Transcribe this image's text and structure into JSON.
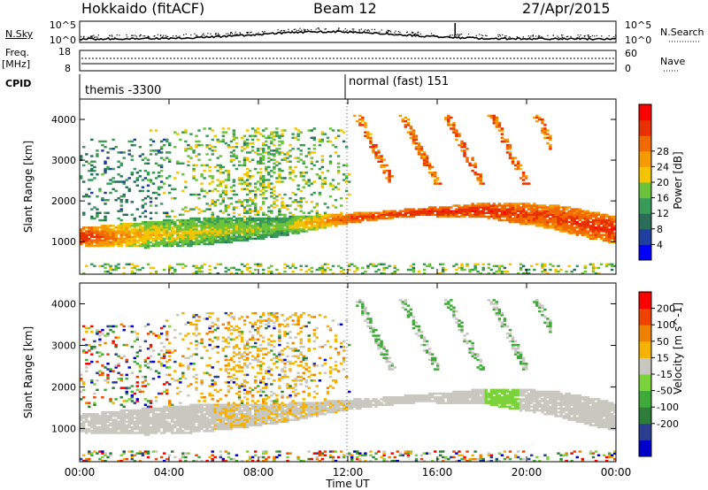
{
  "header": {
    "station": "Hokkaido (fitACF)",
    "beam": "Beam 12",
    "date": "27/Apr/2015"
  },
  "side_labels": {
    "nsky": "N.Sky",
    "freq": "Freq.",
    "freq_unit": "[MHz]",
    "cpid": "CPID",
    "nsearch": "N.Search",
    "nave": "Nave",
    "nsky_ticks": [
      "10^5",
      "10^0"
    ],
    "freq_ticks": [
      "18",
      "8"
    ],
    "nsearch_ticks": [
      "10^5",
      "10^0"
    ],
    "nave_ticks": [
      "60",
      "0"
    ]
  },
  "cpid_labels": [
    "themis -3300",
    "normal (fast) 151"
  ],
  "colors": {
    "power_scale": [
      "#0000ff",
      "#1f3fa0",
      "#2a6e5a",
      "#3a9a58",
      "#6cc23a",
      "#f5c400",
      "#f59a00",
      "#f06a00",
      "#e83000",
      "#ff0000"
    ],
    "velocity_scale": [
      "#0000cc",
      "#2a3d8f",
      "#2e7d3a",
      "#3faa3a",
      "#7bd23a",
      "#c8c8c0",
      "#f5b300",
      "#f08000",
      "#ee4400",
      "#ff0000"
    ]
  },
  "chart_data": [
    {
      "type": "heatmap",
      "title": "",
      "xlabel": "",
      "ylabel": "Slant Range [km]",
      "x_ticks": [],
      "y_ticks": [
        "1000",
        "2000",
        "3000",
        "4000"
      ],
      "xlim": [
        "00:00",
        "24:00"
      ],
      "ylim": [
        200,
        4500
      ],
      "colorbar_label": "Power [dB]",
      "colorbar_ticks": [
        "4",
        "8",
        "12",
        "16",
        "20",
        "24",
        "28"
      ],
      "features": [
        {
          "desc": "near-range echo band",
          "time_start": "00:00",
          "time_end": "24:00",
          "range_center_km": [
            1100,
            1150,
            1250,
            1350,
            1550,
            1700,
            1750,
            1600,
            1250
          ],
          "times": [
            "00:00",
            "03:00",
            "06:00",
            "09:00",
            "12:00",
            "15:00",
            "18:00",
            "21:00",
            "24:00"
          ],
          "power_db": [
            28,
            18,
            16,
            14,
            26,
            28,
            28,
            26,
            28
          ]
        }
      ]
    },
    {
      "type": "heatmap",
      "title": "",
      "xlabel": "Time UT",
      "ylabel": "Slant Range [km]",
      "x_ticks": [
        "00:00",
        "04:00",
        "08:00",
        "12:00",
        "16:00",
        "20:00",
        "00:00"
      ],
      "y_ticks": [
        "1000",
        "2000",
        "3000",
        "4000"
      ],
      "xlim": [
        "00:00",
        "24:00"
      ],
      "ylim": [
        200,
        4500
      ],
      "colorbar_label": "Velocity [m s^-1]",
      "colorbar_ticks": [
        "200",
        "100",
        "50",
        "15",
        "-15",
        "-50",
        "-100",
        "-200"
      ]
    }
  ]
}
